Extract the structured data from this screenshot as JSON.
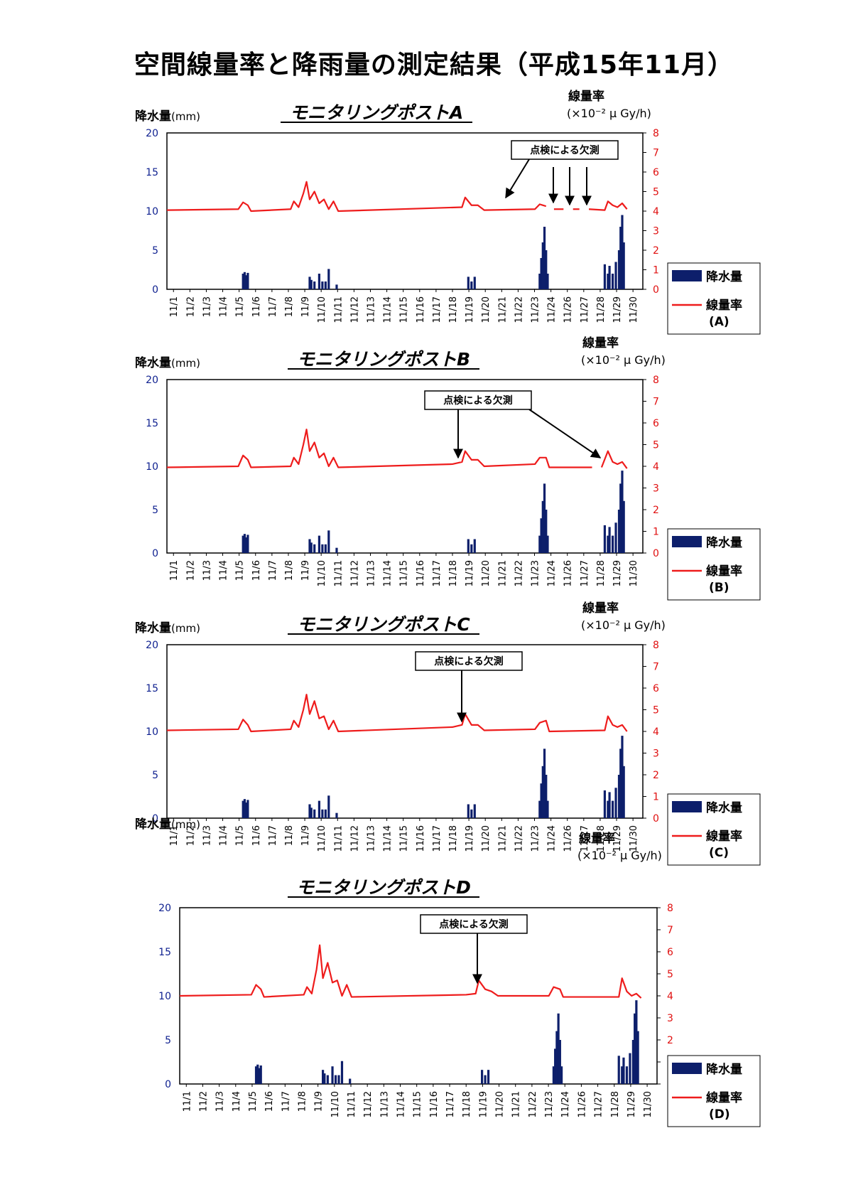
{
  "title": "空間線量率と降雨量の測定結果（平成15年11月）",
  "colors": {
    "rain": "#0d1f6b",
    "rate": "#ee1c1c",
    "left_axis": "#0d1f8f",
    "right_axis": "#e01010"
  },
  "common": {
    "left_label": "降水量",
    "left_unit": "(mm)",
    "right_label": "線量率",
    "right_unit": "(×10⁻² μ Gy/h)",
    "legend_rain": "降水量",
    "legend_rate": "線量率",
    "note": "点検による欠測",
    "left_ticks": [
      "0",
      "5",
      "10",
      "15",
      "20"
    ],
    "right_ticks": [
      "0",
      "1",
      "2",
      "3",
      "4",
      "5",
      "6",
      "7",
      "8"
    ],
    "x_ticks": [
      "11/1",
      "11/2",
      "11/3",
      "11/4",
      "11/5",
      "11/6",
      "11/7",
      "11/8",
      "11/9",
      "11/10",
      "11/11",
      "11/12",
      "11/13",
      "11/14",
      "11/15",
      "11/16",
      "11/17",
      "11/18",
      "11/19",
      "11/20",
      "11/21",
      "11/22",
      "11/23",
      "11/24",
      "11/26",
      "11/27",
      "11/28",
      "11/29",
      "11/30"
    ]
  },
  "chart_data": [
    {
      "type": "bar+line",
      "title": "モニタリングポストA",
      "legend_tag": "(A)",
      "ylabel_left": "降水量(mm)",
      "ylim_left": [
        0,
        20
      ],
      "ylabel_right": "線量率 (×10⁻² μ Gy/h)",
      "ylim_right": [
        0,
        8
      ],
      "rainfall_mm": [
        [
          5.8,
          2.0
        ],
        [
          5.9,
          2.2
        ],
        [
          6.0,
          1.8
        ],
        [
          6.1,
          2.1
        ],
        [
          10.0,
          1.6
        ],
        [
          10.1,
          1.2
        ],
        [
          10.3,
          1.0
        ],
        [
          10.6,
          2.0
        ],
        [
          10.8,
          1.0
        ],
        [
          11.0,
          1.0
        ],
        [
          11.2,
          2.6
        ],
        [
          11.7,
          0.6
        ],
        [
          20.0,
          1.6
        ],
        [
          20.2,
          1.0
        ],
        [
          20.4,
          1.6
        ],
        [
          24.5,
          2.0
        ],
        [
          24.6,
          4.0
        ],
        [
          24.7,
          6.0
        ],
        [
          24.8,
          8.0
        ],
        [
          24.9,
          5.0
        ],
        [
          25.0,
          2.0
        ],
        [
          28.6,
          3.2
        ],
        [
          28.8,
          2.0
        ],
        [
          28.9,
          3.0
        ],
        [
          29.1,
          2.0
        ],
        [
          29.3,
          3.5
        ],
        [
          29.5,
          5.0
        ],
        [
          29.6,
          8.0
        ],
        [
          29.7,
          9.5
        ],
        [
          29.8,
          6.0
        ]
      ],
      "dose_rate": [
        [
          1,
          4.05
        ],
        [
          5.5,
          4.1
        ],
        [
          5.8,
          4.45
        ],
        [
          6.1,
          4.3
        ],
        [
          6.3,
          4.0
        ],
        [
          8.8,
          4.1
        ],
        [
          9.0,
          4.5
        ],
        [
          9.3,
          4.2
        ],
        [
          9.6,
          4.9
        ],
        [
          9.8,
          5.5
        ],
        [
          10.0,
          4.6
        ],
        [
          10.3,
          5.0
        ],
        [
          10.6,
          4.4
        ],
        [
          10.9,
          4.6
        ],
        [
          11.2,
          4.1
        ],
        [
          11.5,
          4.5
        ],
        [
          11.8,
          4.0
        ],
        [
          19.6,
          4.2
        ],
        [
          19.8,
          4.7
        ],
        [
          20.2,
          4.3
        ],
        [
          20.6,
          4.3
        ],
        [
          21.0,
          4.05
        ],
        [
          24.2,
          4.1
        ],
        [
          24.5,
          4.35
        ],
        [
          24.9,
          4.25
        ],
        [
          25.1,
          null
        ],
        [
          25.4,
          4.1
        ],
        [
          26.0,
          4.1
        ],
        [
          26.2,
          null
        ],
        [
          26.6,
          4.1
        ],
        [
          27.0,
          4.1
        ],
        [
          27.2,
          null
        ],
        [
          27.6,
          4.1
        ],
        [
          28.6,
          4.05
        ],
        [
          28.8,
          4.5
        ],
        [
          29.1,
          4.3
        ],
        [
          29.4,
          4.2
        ],
        [
          29.7,
          4.4
        ],
        [
          30,
          4.1
        ]
      ],
      "note_label": "点検による欠測"
    },
    {
      "type": "bar+line",
      "title": "モニタリングポストB",
      "legend_tag": "(B)",
      "ylabel_left": "降水量(mm)",
      "ylim_left": [
        0,
        20
      ],
      "ylabel_right": "線量率 (×10⁻² μ Gy/h)",
      "ylim_right": [
        0,
        8
      ],
      "rainfall_mm": [
        [
          5.8,
          2.0
        ],
        [
          5.9,
          2.2
        ],
        [
          6.0,
          1.8
        ],
        [
          6.1,
          2.1
        ],
        [
          10.0,
          1.6
        ],
        [
          10.1,
          1.2
        ],
        [
          10.3,
          1.0
        ],
        [
          10.6,
          2.0
        ],
        [
          10.8,
          1.0
        ],
        [
          11.0,
          1.0
        ],
        [
          11.2,
          2.6
        ],
        [
          11.7,
          0.6
        ],
        [
          20.0,
          1.6
        ],
        [
          20.2,
          1.0
        ],
        [
          20.4,
          1.6
        ],
        [
          24.5,
          2.0
        ],
        [
          24.6,
          4.0
        ],
        [
          24.7,
          6.0
        ],
        [
          24.8,
          8.0
        ],
        [
          24.9,
          5.0
        ],
        [
          25.0,
          2.0
        ],
        [
          28.6,
          3.2
        ],
        [
          28.8,
          2.0
        ],
        [
          28.9,
          3.0
        ],
        [
          29.1,
          2.0
        ],
        [
          29.3,
          3.5
        ],
        [
          29.5,
          5.0
        ],
        [
          29.6,
          8.0
        ],
        [
          29.7,
          9.5
        ],
        [
          29.8,
          6.0
        ]
      ],
      "dose_rate": [
        [
          1,
          3.95
        ],
        [
          5.5,
          4.0
        ],
        [
          5.8,
          4.5
        ],
        [
          6.1,
          4.3
        ],
        [
          6.3,
          3.95
        ],
        [
          8.8,
          4.0
        ],
        [
          9.0,
          4.4
        ],
        [
          9.3,
          4.1
        ],
        [
          9.6,
          5.0
        ],
        [
          9.8,
          5.7
        ],
        [
          10.0,
          4.7
        ],
        [
          10.3,
          5.1
        ],
        [
          10.6,
          4.4
        ],
        [
          10.9,
          4.6
        ],
        [
          11.2,
          4.0
        ],
        [
          11.5,
          4.4
        ],
        [
          11.8,
          3.95
        ],
        [
          19.0,
          4.1
        ],
        [
          19.6,
          4.2
        ],
        [
          19.8,
          4.7
        ],
        [
          20.2,
          4.3
        ],
        [
          20.6,
          4.3
        ],
        [
          21.0,
          4.0
        ],
        [
          24.2,
          4.1
        ],
        [
          24.5,
          4.4
        ],
        [
          24.9,
          4.4
        ],
        [
          25.1,
          3.95
        ],
        [
          27.8,
          3.95
        ],
        [
          28.0,
          null
        ],
        [
          28.4,
          3.95
        ],
        [
          28.8,
          4.7
        ],
        [
          29.1,
          4.2
        ],
        [
          29.4,
          4.1
        ],
        [
          29.7,
          4.2
        ],
        [
          30,
          3.9
        ]
      ],
      "note_label": "点検による欠測"
    },
    {
      "type": "bar+line",
      "title": "モニタリングポストC",
      "legend_tag": "(C)",
      "ylabel_left": "降水量(mm)",
      "ylim_left": [
        0,
        20
      ],
      "ylabel_right": "線量率 (×10⁻² μ Gy/h)",
      "ylim_right": [
        0,
        8
      ],
      "rainfall_mm": [
        [
          5.8,
          2.0
        ],
        [
          5.9,
          2.2
        ],
        [
          6.0,
          1.8
        ],
        [
          6.1,
          2.1
        ],
        [
          10.0,
          1.6
        ],
        [
          10.1,
          1.2
        ],
        [
          10.3,
          1.0
        ],
        [
          10.6,
          2.0
        ],
        [
          10.8,
          1.0
        ],
        [
          11.0,
          1.0
        ],
        [
          11.2,
          2.6
        ],
        [
          11.7,
          0.6
        ],
        [
          20.0,
          1.6
        ],
        [
          20.2,
          1.0
        ],
        [
          20.4,
          1.6
        ],
        [
          24.5,
          2.0
        ],
        [
          24.6,
          4.0
        ],
        [
          24.7,
          6.0
        ],
        [
          24.8,
          8.0
        ],
        [
          24.9,
          5.0
        ],
        [
          25.0,
          2.0
        ],
        [
          28.6,
          3.2
        ],
        [
          28.8,
          2.0
        ],
        [
          28.9,
          3.0
        ],
        [
          29.1,
          2.0
        ],
        [
          29.3,
          3.5
        ],
        [
          29.5,
          5.0
        ],
        [
          29.6,
          8.0
        ],
        [
          29.7,
          9.5
        ],
        [
          29.8,
          6.0
        ]
      ],
      "dose_rate": [
        [
          1,
          4.05
        ],
        [
          5.5,
          4.1
        ],
        [
          5.8,
          4.55
        ],
        [
          6.1,
          4.3
        ],
        [
          6.3,
          4.0
        ],
        [
          8.8,
          4.1
        ],
        [
          9.0,
          4.5
        ],
        [
          9.3,
          4.2
        ],
        [
          9.6,
          5.0
        ],
        [
          9.8,
          5.7
        ],
        [
          10.0,
          4.8
        ],
        [
          10.3,
          5.4
        ],
        [
          10.6,
          4.6
        ],
        [
          10.9,
          4.7
        ],
        [
          11.2,
          4.1
        ],
        [
          11.5,
          4.5
        ],
        [
          11.8,
          4.0
        ],
        [
          19.0,
          4.2
        ],
        [
          19.6,
          4.3
        ],
        [
          19.8,
          4.8
        ],
        [
          20.2,
          4.3
        ],
        [
          20.6,
          4.3
        ],
        [
          21.0,
          4.05
        ],
        [
          24.2,
          4.1
        ],
        [
          24.5,
          4.4
        ],
        [
          24.9,
          4.5
        ],
        [
          25.1,
          4.0
        ],
        [
          28.6,
          4.05
        ],
        [
          28.8,
          4.7
        ],
        [
          29.1,
          4.3
        ],
        [
          29.4,
          4.2
        ],
        [
          29.7,
          4.3
        ],
        [
          30,
          4.0
        ]
      ],
      "note_label": "点検による欠測"
    },
    {
      "type": "bar+line",
      "title": "モニタリングポストD",
      "legend_tag": "(D)",
      "ylabel_left": "降水量(mm)",
      "ylim_left": [
        0,
        20
      ],
      "ylabel_right": "線量率 (×10⁻² μ Gy/h)",
      "ylim_right": [
        0,
        8
      ],
      "rainfall_mm": [
        [
          5.8,
          2.0
        ],
        [
          5.9,
          2.2
        ],
        [
          6.0,
          1.8
        ],
        [
          6.1,
          2.1
        ],
        [
          10.0,
          1.6
        ],
        [
          10.1,
          1.2
        ],
        [
          10.3,
          1.0
        ],
        [
          10.6,
          2.0
        ],
        [
          10.8,
          1.0
        ],
        [
          11.0,
          1.0
        ],
        [
          11.2,
          2.6
        ],
        [
          11.7,
          0.6
        ],
        [
          20.0,
          1.6
        ],
        [
          20.2,
          1.0
        ],
        [
          20.4,
          1.6
        ],
        [
          24.5,
          2.0
        ],
        [
          24.6,
          4.0
        ],
        [
          24.7,
          6.0
        ],
        [
          24.8,
          8.0
        ],
        [
          24.9,
          5.0
        ],
        [
          25.0,
          2.0
        ],
        [
          28.6,
          3.2
        ],
        [
          28.8,
          2.0
        ],
        [
          28.9,
          3.0
        ],
        [
          29.1,
          2.0
        ],
        [
          29.3,
          3.5
        ],
        [
          29.5,
          5.0
        ],
        [
          29.6,
          8.0
        ],
        [
          29.7,
          9.5
        ],
        [
          29.8,
          6.0
        ]
      ],
      "dose_rate": [
        [
          1,
          4.0
        ],
        [
          5.5,
          4.05
        ],
        [
          5.8,
          4.5
        ],
        [
          6.1,
          4.3
        ],
        [
          6.3,
          3.95
        ],
        [
          8.8,
          4.05
        ],
        [
          9.0,
          4.4
        ],
        [
          9.3,
          4.1
        ],
        [
          9.6,
          5.2
        ],
        [
          9.8,
          6.3
        ],
        [
          10.0,
          4.8
        ],
        [
          10.3,
          5.5
        ],
        [
          10.6,
          4.6
        ],
        [
          10.9,
          4.7
        ],
        [
          11.2,
          4.0
        ],
        [
          11.5,
          4.5
        ],
        [
          11.8,
          3.95
        ],
        [
          19.0,
          4.05
        ],
        [
          19.6,
          4.1
        ],
        [
          19.8,
          4.7
        ],
        [
          20.2,
          4.3
        ],
        [
          20.6,
          4.2
        ],
        [
          21.0,
          4.0
        ],
        [
          24.2,
          4.0
        ],
        [
          24.5,
          4.4
        ],
        [
          24.9,
          4.3
        ],
        [
          25.1,
          3.95
        ],
        [
          28.6,
          3.95
        ],
        [
          28.8,
          4.8
        ],
        [
          29.1,
          4.2
        ],
        [
          29.4,
          4.0
        ],
        [
          29.7,
          4.1
        ],
        [
          30,
          3.9
        ]
      ],
      "note_label": "点検による欠測"
    }
  ]
}
